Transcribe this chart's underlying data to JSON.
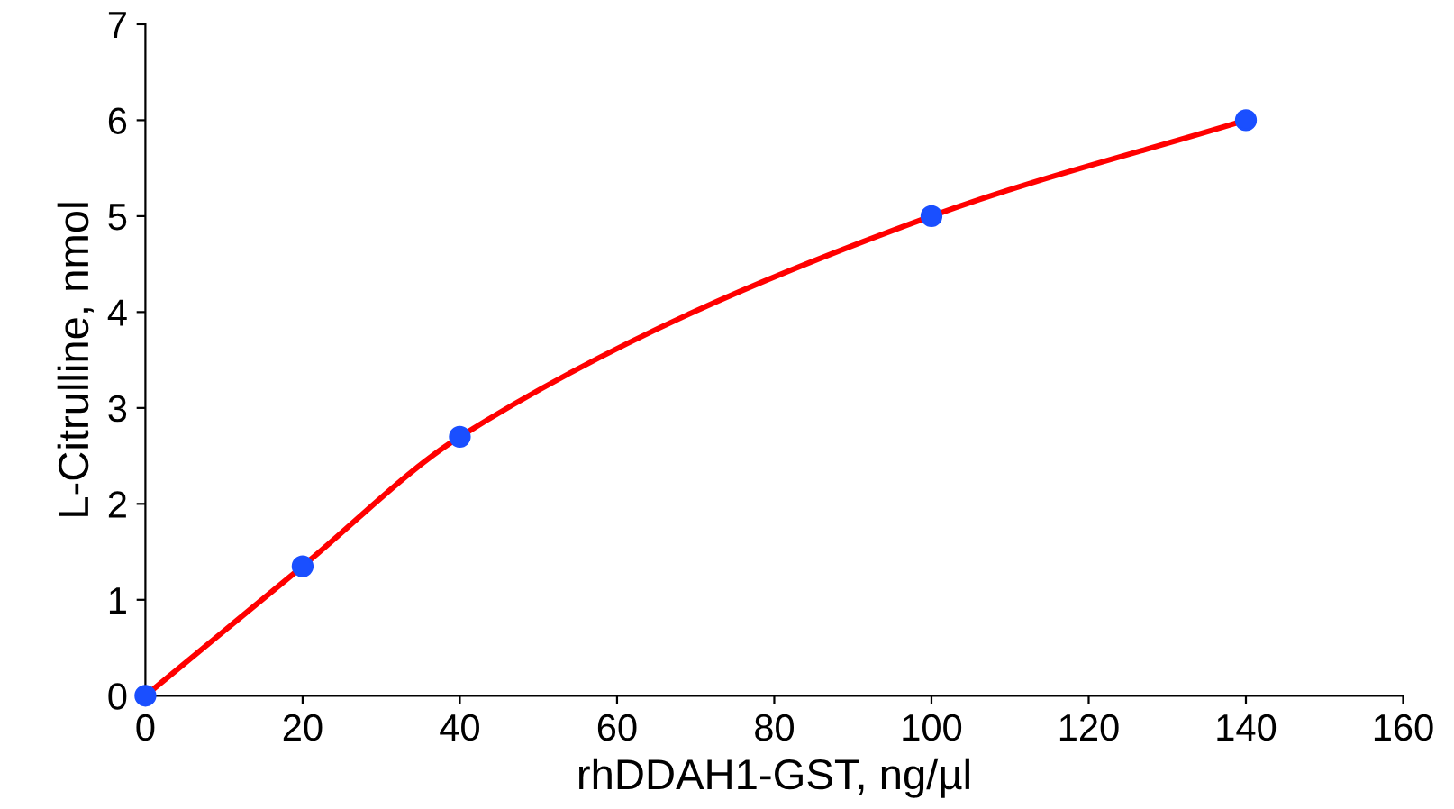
{
  "chart_data": {
    "type": "line",
    "xlabel": "rhDDAH1-GST, ng/µl",
    "ylabel": "L-Citrulline, nmol",
    "x": [
      0,
      20,
      40,
      100,
      140
    ],
    "series": [
      {
        "color": "#ff0000",
        "values": [
          0,
          1.35,
          2.7,
          5.0,
          6.0
        ]
      },
      {
        "type": "scatter",
        "color": "#1a4fff",
        "marker": "circle",
        "values": [
          0,
          1.35,
          2.7,
          5.0,
          6.0
        ]
      }
    ],
    "xlim": [
      0,
      160
    ],
    "xticks": [
      0,
      20,
      40,
      60,
      80,
      100,
      120,
      140,
      160
    ],
    "ylim": [
      0,
      7
    ],
    "yticks": [
      0,
      1,
      2,
      3,
      4,
      5,
      6,
      7
    ],
    "grid": false,
    "legend": false
  }
}
